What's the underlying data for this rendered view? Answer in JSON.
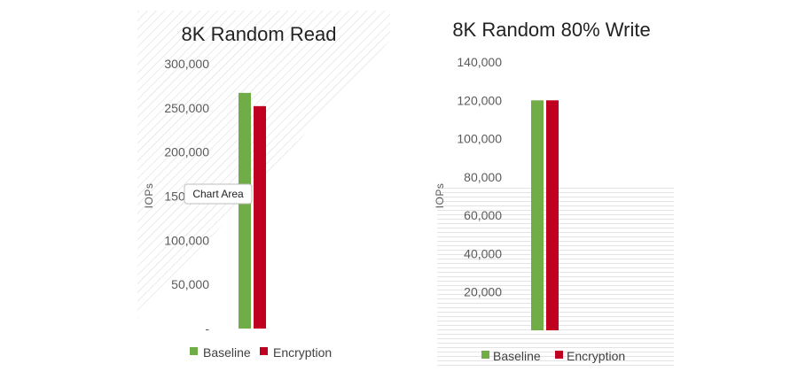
{
  "colors": {
    "baseline": "#70ad47",
    "encryption": "#c00020",
    "hatch": "#d4d4d4"
  },
  "tooltip": {
    "label": "Chart Area"
  },
  "chart_data": [
    {
      "type": "bar",
      "title": "8K Random Read",
      "ylabel": "IOPs",
      "ylim": [
        0,
        300000
      ],
      "yticks": [
        "-",
        "50,000",
        "100,000",
        "150,000",
        "200,000",
        "250,000",
        "300,000"
      ],
      "categories": [
        ""
      ],
      "series": [
        {
          "name": "Baseline",
          "values": [
            267000
          ]
        },
        {
          "name": "Encryption",
          "values": [
            252000
          ]
        }
      ],
      "legend": "bottom",
      "grid": false
    },
    {
      "type": "bar",
      "title": "8K Random 80% Write",
      "ylabel": "IOPs",
      "ylim": [
        0,
        140000
      ],
      "yticks": [
        "",
        "20,000",
        "40,000",
        "60,000",
        "80,000",
        "100,000",
        "120,000",
        "140,000"
      ],
      "categories": [
        ""
      ],
      "series": [
        {
          "name": "Baseline",
          "values": [
            120000
          ]
        },
        {
          "name": "Encryption",
          "values": [
            120000
          ]
        }
      ],
      "legend": "bottom",
      "grid": false
    }
  ]
}
